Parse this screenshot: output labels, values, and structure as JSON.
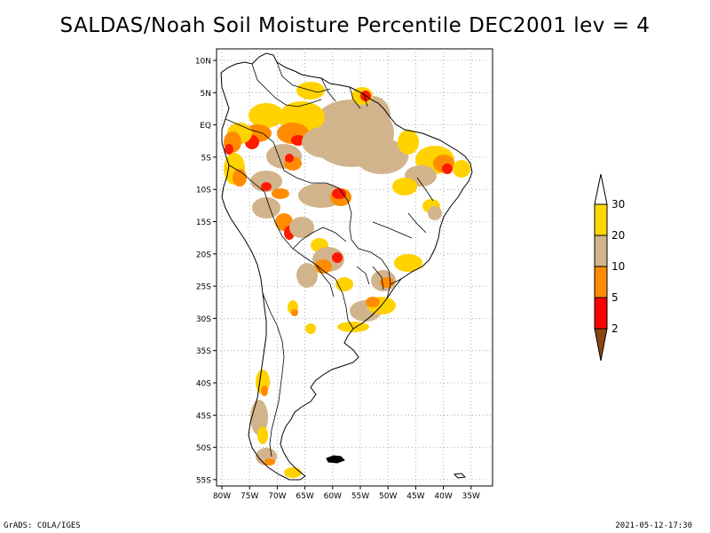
{
  "title": "SALDAS/Noah Soil Moisture Percentile DEC2001 lev = 4",
  "footer": {
    "left": "GrADS: COLA/IGES",
    "right": "2021-05-12-17:30"
  },
  "map": {
    "lon_labels": [
      "80W",
      "75W",
      "70W",
      "65W",
      "60W",
      "55W",
      "50W",
      "45W",
      "40W",
      "35W"
    ],
    "lat_labels": [
      "10N",
      "5N",
      "EQ",
      "5S",
      "10S",
      "15S",
      "20S",
      "25S",
      "30S",
      "35S",
      "40S",
      "45S",
      "50S",
      "55S"
    ]
  },
  "legend": {
    "labels": [
      "30",
      "20",
      "10",
      "5",
      "2"
    ],
    "colors": {
      "above": "#ffffff",
      "c20_30": "#ffd700",
      "c10_20": "#d2b48c",
      "c5_10": "#ff8c00",
      "c2_5": "#ff0000",
      "below": "#8b4513"
    }
  },
  "colors": {
    "yellow": "#ffd200",
    "tan": "#d2b48c",
    "orange": "#ff8c00",
    "red": "#ff1a00",
    "brown": "#8b4513"
  }
}
